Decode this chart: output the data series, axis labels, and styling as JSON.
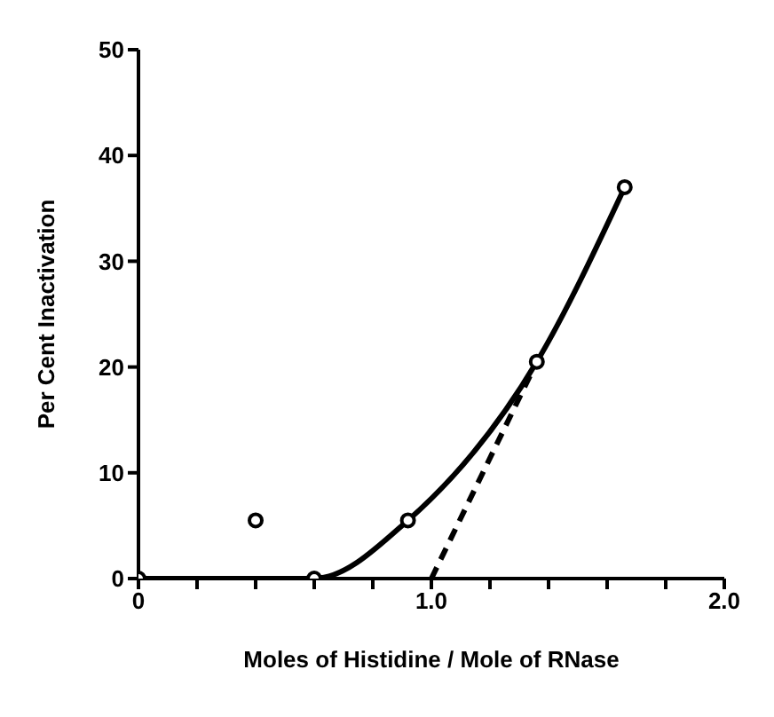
{
  "chart_data": {
    "type": "line",
    "xlabel": "Moles of Histidine / Mole of RNase",
    "ylabel": "Per Cent Inactivation",
    "xlim": [
      0,
      2
    ],
    "xticks": [
      0,
      {
        "value": 0.2,
        "label": null
      },
      {
        "value": 0.4,
        "label": null
      },
      {
        "value": 0.6,
        "label": null
      },
      {
        "value": 0.8,
        "label": null
      },
      {
        "value": 1,
        "label": "1.0"
      },
      {
        "value": 1.2,
        "label": null
      },
      {
        "value": 1.4,
        "label": null
      },
      {
        "value": 1.6,
        "label": null
      },
      {
        "value": 1.8,
        "label": null
      },
      {
        "value": 2,
        "label": "2.0"
      }
    ],
    "ylim": [
      0,
      50
    ],
    "yticks": [
      0,
      10,
      20,
      30,
      40,
      50
    ],
    "grid": false,
    "series": [
      {
        "type": "line",
        "color": "#000000",
        "marker": "circle",
        "line_style": "solid",
        "x": [
          0,
          0.6,
          0.92,
          1.36,
          1.66
        ],
        "values": [
          0,
          0,
          5.5,
          20.5,
          37
        ]
      },
      {
        "type": "scatter",
        "color": "#000000",
        "marker": "circle",
        "x": [
          0.4
        ],
        "values": [
          5.5
        ]
      },
      {
        "type": "line",
        "color": "#000000",
        "marker": "none",
        "line_style": "dashed",
        "x": [
          1.0,
          1.36
        ],
        "values": [
          0,
          20.5
        ]
      }
    ]
  }
}
